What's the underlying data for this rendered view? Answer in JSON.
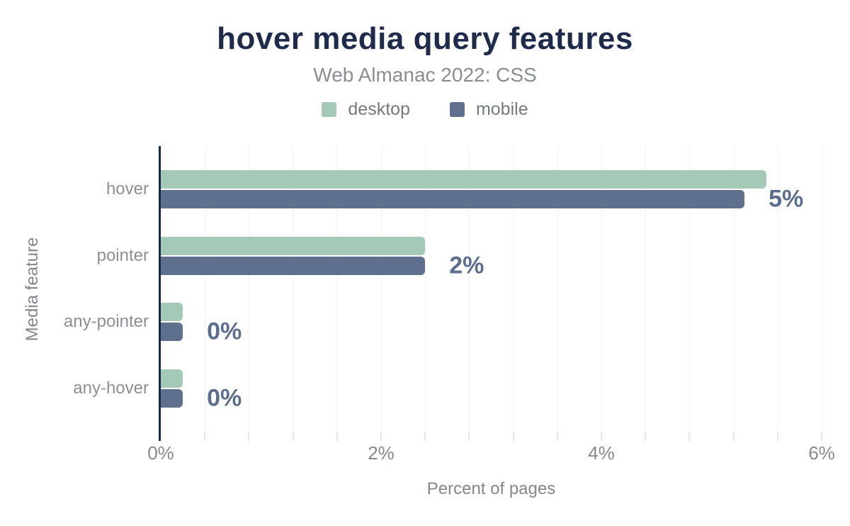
{
  "chart_data": {
    "type": "bar",
    "orientation": "horizontal",
    "title": "hover media query features",
    "subtitle": "Web Almanac 2022: CSS",
    "categories": [
      "hover",
      "pointer",
      "any-pointer",
      "any-hover"
    ],
    "series": [
      {
        "name": "desktop",
        "color": "#a4c9b6",
        "values": [
          5.5,
          2.4,
          0.2,
          0.2
        ]
      },
      {
        "name": "mobile",
        "color": "#5e708d",
        "values": [
          5.3,
          2.4,
          0.2,
          0.2
        ]
      }
    ],
    "value_labels": [
      "5%",
      "2%",
      "0%",
      "0%"
    ],
    "value_label_color": "#5b6e90",
    "xlabel": "Percent of pages",
    "ylabel": "Media feature",
    "xlim": [
      0,
      6
    ],
    "x_tick_values": [
      0,
      2,
      4,
      6
    ],
    "x_tick_labels": [
      "0%",
      "2%",
      "4%",
      "6%"
    ],
    "minor_grid_step": 0.4,
    "grid": "minor vertical gridlines, light gray",
    "legend_position": "top",
    "axis_line_color": "#16294a",
    "title_color": "#1e2b4d",
    "subtitle_color": "#898d95"
  }
}
